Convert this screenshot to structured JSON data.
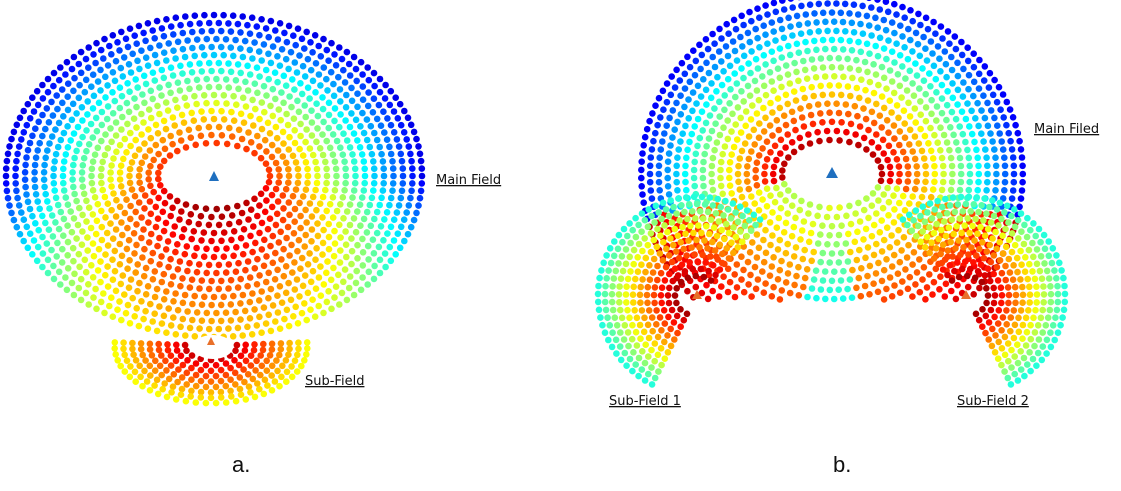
{
  "figure": {
    "panel_a": {
      "caption": "a.",
      "main_label": "Main Field",
      "sub_label": "Sub-Field"
    },
    "panel_b": {
      "caption": "b.",
      "main_label": "Main Filed",
      "sub1_label": "Sub-Field 1",
      "sub2_label": "Sub-Field 2"
    }
  },
  "colors": {
    "tower_main": "#1f6fbf",
    "tower_sub": "#e8702a",
    "colormap": [
      "#00008f",
      "#0000ff",
      "#0080ff",
      "#00ffff",
      "#80ff80",
      "#ffff00",
      "#ff8000",
      "#ff0000",
      "#800000"
    ]
  }
}
